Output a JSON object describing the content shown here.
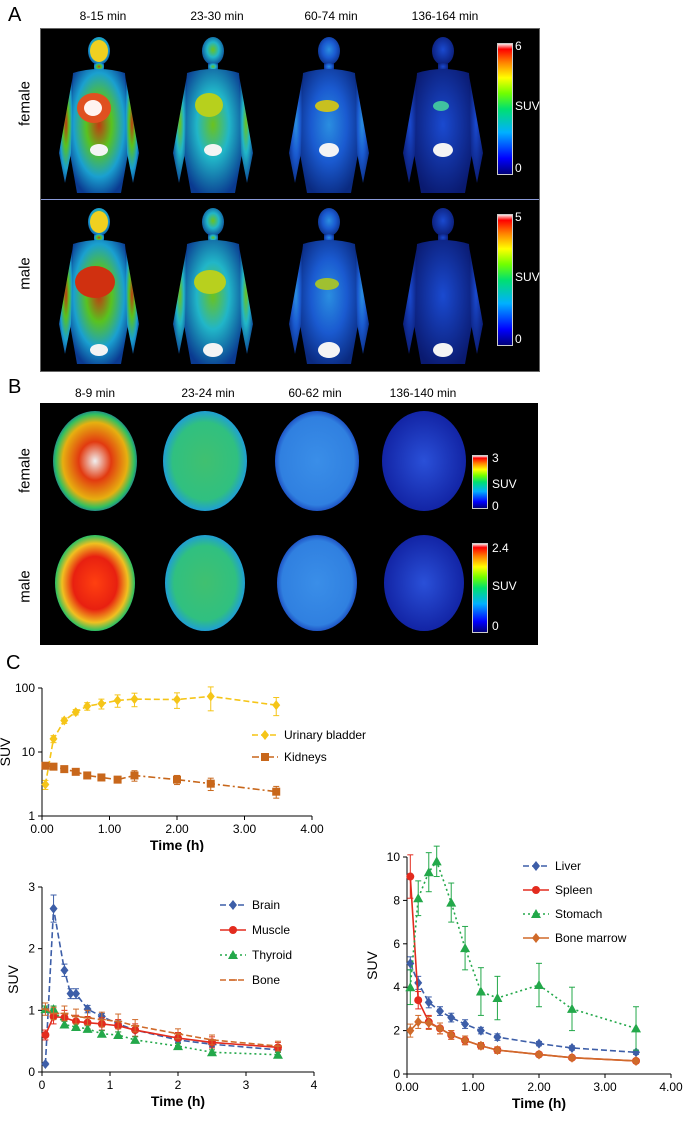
{
  "panelA": {
    "letter": "A",
    "time_labels": [
      "8-15 min",
      "23-30 min",
      "60-74 min",
      "136-164 min"
    ],
    "rows": [
      {
        "label": "female",
        "cbar_max": "6",
        "cbar_mid": "SUV",
        "cbar_min": "0"
      },
      {
        "label": "male",
        "cbar_max": "5",
        "cbar_mid": "SUV",
        "cbar_min": "0"
      }
    ]
  },
  "panelB": {
    "letter": "B",
    "time_labels": [
      "8-9 min",
      "23-24 min",
      "60-62 min",
      "136-140 min"
    ],
    "rows": [
      {
        "label": "female",
        "cbar_max": "3",
        "cbar_mid": "SUV",
        "cbar_min": "0"
      },
      {
        "label": "male",
        "cbar_max": "2.4",
        "cbar_mid": "SUV",
        "cbar_min": "0"
      }
    ]
  },
  "panelC": {
    "letter": "C"
  },
  "chart_data": [
    {
      "type": "line",
      "yscale": "log",
      "xlabel": "Time (h)",
      "ylabel": "SUV",
      "xlim": [
        0,
        4
      ],
      "ylim": [
        1,
        100
      ],
      "xticks": [
        "0.00",
        "1.00",
        "2.00",
        "3.00",
        "4.00"
      ],
      "yticks": [
        "1",
        "10",
        "100"
      ],
      "legend_position": "right",
      "series": [
        {
          "name": "Urinary bladder",
          "color": "#f5c518",
          "marker": "diamond",
          "style": "dashed",
          "x": [
            0.05,
            0.17,
            0.33,
            0.5,
            0.67,
            0.88,
            1.12,
            1.37,
            2.0,
            2.5,
            3.47
          ],
          "y": [
            3.1,
            16,
            31,
            42,
            52,
            57,
            64,
            67,
            66,
            74,
            54
          ],
          "err": [
            0.5,
            2,
            3,
            4,
            7,
            10,
            14,
            16,
            18,
            30,
            17
          ]
        },
        {
          "name": "Kidneys",
          "color": "#c8671b",
          "marker": "square",
          "style": "dashdot",
          "x": [
            0.05,
            0.17,
            0.33,
            0.5,
            0.67,
            0.88,
            1.12,
            1.37,
            2.0,
            2.5,
            3.47
          ],
          "y": [
            6.1,
            5.9,
            5.4,
            4.9,
            4.3,
            4.0,
            3.7,
            4.3,
            3.7,
            3.2,
            2.4
          ],
          "err": [
            0.3,
            0.3,
            0.4,
            0.4,
            0.4,
            0.4,
            0.4,
            0.8,
            0.6,
            0.7,
            0.5
          ]
        }
      ]
    },
    {
      "type": "line",
      "xlabel": "Time (h)",
      "ylabel": "SUV",
      "xlim": [
        0,
        4
      ],
      "ylim": [
        0,
        3
      ],
      "xticks": [
        "0",
        "1",
        "2",
        "3",
        "4"
      ],
      "yticks": [
        "0",
        "1",
        "2",
        "3"
      ],
      "legend_position": "top-right",
      "series": [
        {
          "name": "Brain",
          "color": "#3d5ea8",
          "marker": "diamond",
          "style": "dashed",
          "x": [
            0.05,
            0.17,
            0.33,
            0.42,
            0.5,
            0.67,
            0.88,
            1.12,
            1.37,
            2.0,
            2.5,
            3.47
          ],
          "y": [
            0.13,
            2.65,
            1.65,
            1.27,
            1.27,
            1.02,
            0.9,
            0.78,
            0.68,
            0.52,
            0.45,
            0.36
          ],
          "err": [
            0.02,
            0.22,
            0.1,
            0.08,
            0.08,
            0.06,
            0.05,
            0.05,
            0.04,
            0.04,
            0.04,
            0.04
          ]
        },
        {
          "name": "Muscle",
          "color": "#e32b1e",
          "marker": "circle",
          "style": "solid",
          "x": [
            0.05,
            0.17,
            0.33,
            0.5,
            0.67,
            0.88,
            1.12,
            1.37,
            2.0,
            2.5,
            3.47
          ],
          "y": [
            0.6,
            0.9,
            0.88,
            0.82,
            0.8,
            0.78,
            0.75,
            0.68,
            0.55,
            0.48,
            0.4
          ],
          "err": [
            0.08,
            0.12,
            0.12,
            0.1,
            0.1,
            0.1,
            0.1,
            0.1,
            0.09,
            0.09,
            0.08
          ]
        },
        {
          "name": "Thyroid",
          "color": "#23a84a",
          "marker": "triangle",
          "style": "dotted",
          "x": [
            0.05,
            0.17,
            0.33,
            0.5,
            0.67,
            0.88,
            1.12,
            1.37,
            2.0,
            2.5,
            3.47
          ],
          "y": [
            1.02,
            1.02,
            0.77,
            0.73,
            0.7,
            0.62,
            0.6,
            0.52,
            0.42,
            0.32,
            0.28
          ],
          "err": [
            0.05,
            0.05,
            0.05,
            0.05,
            0.05,
            0.05,
            0.05,
            0.05,
            0.04,
            0.04,
            0.04
          ]
        },
        {
          "name": "Bone",
          "color": "#d06a2a",
          "marker": "plus",
          "style": "dashed",
          "x": [
            0.05,
            0.17,
            0.33,
            0.5,
            0.67,
            0.88,
            1.12,
            1.37,
            2.0,
            2.5,
            3.47
          ],
          "y": [
            1.02,
            0.95,
            0.95,
            0.9,
            0.88,
            0.85,
            0.82,
            0.75,
            0.62,
            0.52,
            0.42
          ],
          "err": [
            0.1,
            0.1,
            0.12,
            0.12,
            0.12,
            0.12,
            0.12,
            0.1,
            0.08,
            0.08,
            0.08
          ]
        }
      ]
    },
    {
      "type": "line",
      "xlabel": "Time (h)",
      "ylabel": "SUV",
      "xlim": [
        0,
        4
      ],
      "ylim": [
        0,
        10
      ],
      "xticks": [
        "0.00",
        "1.00",
        "2.00",
        "3.00",
        "4.00"
      ],
      "yticks": [
        "0",
        "2",
        "4",
        "6",
        "8",
        "10"
      ],
      "legend_position": "top-right",
      "series": [
        {
          "name": "Liver",
          "color": "#3d5ea8",
          "marker": "diamond",
          "style": "dashed",
          "x": [
            0.05,
            0.17,
            0.33,
            0.5,
            0.67,
            0.88,
            1.12,
            1.37,
            2.0,
            2.5,
            3.47
          ],
          "y": [
            5.1,
            4.2,
            3.3,
            2.9,
            2.6,
            2.3,
            2.0,
            1.7,
            1.4,
            1.2,
            1.0
          ],
          "err": [
            0.3,
            0.3,
            0.25,
            0.2,
            0.2,
            0.2,
            0.15,
            0.15,
            0.1,
            0.1,
            0.1
          ]
        },
        {
          "name": "Spleen",
          "color": "#e32b1e",
          "marker": "circle",
          "style": "solid",
          "x": [
            0.05,
            0.17,
            0.33,
            0.5,
            0.67,
            0.88,
            1.12,
            1.37,
            2.0,
            2.5,
            3.47
          ],
          "y": [
            9.1,
            3.4,
            2.4,
            2.1,
            1.8,
            1.55,
            1.3,
            1.1,
            0.9,
            0.75,
            0.6
          ],
          "err": [
            1.0,
            0.4,
            0.3,
            0.25,
            0.2,
            0.2,
            0.15,
            0.15,
            0.1,
            0.1,
            0.1
          ]
        },
        {
          "name": "Stomach",
          "color": "#23a84a",
          "marker": "triangle",
          "style": "dotted",
          "x": [
            0.05,
            0.17,
            0.33,
            0.45,
            0.67,
            0.88,
            1.12,
            1.37,
            2.0,
            2.5,
            3.47
          ],
          "y": [
            4.0,
            8.1,
            9.3,
            9.8,
            7.9,
            5.8,
            3.8,
            3.5,
            4.1,
            3.0,
            2.1
          ],
          "err": [
            0.8,
            0.8,
            0.9,
            0.7,
            0.9,
            1.0,
            1.1,
            1.0,
            1.0,
            1.0,
            1.0
          ]
        },
        {
          "name": "Bone marrow",
          "color": "#d06a2a",
          "marker": "diamond",
          "style": "solid",
          "x": [
            0.05,
            0.17,
            0.33,
            0.5,
            0.67,
            0.88,
            1.12,
            1.37,
            2.0,
            2.5,
            3.47
          ],
          "y": [
            2.0,
            2.4,
            2.35,
            2.1,
            1.8,
            1.55,
            1.3,
            1.1,
            0.9,
            0.75,
            0.6
          ],
          "err": [
            0.3,
            0.3,
            0.3,
            0.25,
            0.2,
            0.2,
            0.15,
            0.15,
            0.1,
            0.1,
            0.1
          ]
        }
      ]
    }
  ]
}
